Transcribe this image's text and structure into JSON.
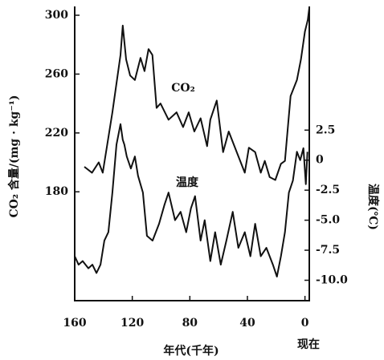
{
  "chart_data": {
    "type": "line",
    "x_label": "年代(千年)",
    "y_label": "CO₂ 含量/(mg · kg⁻¹)",
    "y2_label": "温度(℃)",
    "annotations": [
      "CO₂",
      "温度",
      "现在"
    ],
    "xlim": [
      160,
      -3
    ],
    "xticks": [
      160,
      120,
      80,
      40,
      0
    ],
    "ylim": [
      106,
      306
    ],
    "yticks": [
      180,
      220,
      260,
      300
    ],
    "y2lim": [
      -11.7,
      12.8
    ],
    "y2ticks": [
      {
        "value": -10,
        "label": "-10.0"
      },
      -7.5,
      {
        "value": -5,
        "label": "-5.0"
      },
      -2.5,
      0,
      2.5
    ],
    "series": [
      {
        "name": "CO₂",
        "color": "#111111",
        "axis": "y",
        "x": [
          153.3,
          148,
          143.3,
          140.5,
          133.8,
          128.2,
          126.6,
          124.3,
          121.5,
          118.2,
          114.3,
          111.5,
          108.7,
          106,
          103.1,
          100.4,
          94.8,
          89.2,
          84.7,
          80.8,
          76.9,
          72.5,
          68,
          65.8,
          61.3,
          56.9,
          53,
          47.4,
          41.8,
          39,
          34.6,
          30.7,
          27.9,
          24.5,
          20.6,
          16.7,
          13.9,
          10,
          5.6,
          2.8,
          0,
          -2,
          -3
        ],
        "values": [
          197,
          193,
          200,
          193,
          234,
          273,
          293,
          270,
          259,
          256,
          271,
          262,
          277,
          273,
          237,
          240,
          229,
          234,
          224,
          234,
          221,
          230,
          211,
          229,
          242,
          207,
          221,
          207,
          193,
          210,
          207,
          193,
          201,
          190,
          188,
          199,
          201,
          245,
          256,
          270,
          289,
          297,
          305
        ]
      },
      {
        "name": "温度",
        "color": "#111111",
        "axis": "y2",
        "x": [
          160,
          157.3,
          154.5,
          150.5,
          147.7,
          144.9,
          142.1,
          139.4,
          136.6,
          133.8,
          131,
          128.2,
          126.6,
          125.5,
          123.8,
          121,
          118.2,
          116,
          112.6,
          109.8,
          105.9,
          101.4,
          97.6,
          94.8,
          90.3,
          86.4,
          82.5,
          79.2,
          76.4,
          72.5,
          69.7,
          65.8,
          62.4,
          58.5,
          54.6,
          50.2,
          46.3,
          41.8,
          37.9,
          34.6,
          30.7,
          26.8,
          22.3,
          19.5,
          16.7,
          13.9,
          11.2,
          8.4,
          5.6,
          3.3,
          1.1,
          -0.6,
          -1.7
        ],
        "values": [
          -8.0,
          -8.7,
          -8.4,
          -9.0,
          -8.7,
          -9.4,
          -8.7,
          -6.7,
          -6.0,
          -2.7,
          1.3,
          3.0,
          1.7,
          1.3,
          0.3,
          -0.7,
          0.3,
          -1.3,
          -2.7,
          -6.3,
          -6.7,
          -5.3,
          -3.7,
          -2.7,
          -5.0,
          -4.3,
          -6.0,
          -4.0,
          -3.0,
          -6.7,
          -5.0,
          -8.4,
          -6.0,
          -8.7,
          -6.7,
          -4.3,
          -7.3,
          -6.0,
          -8.0,
          -5.3,
          -8.0,
          -7.3,
          -8.7,
          -9.7,
          -8.0,
          -6.0,
          -2.7,
          -1.7,
          0.7,
          0,
          1.0,
          -2.0,
          0.7
        ]
      }
    ]
  }
}
